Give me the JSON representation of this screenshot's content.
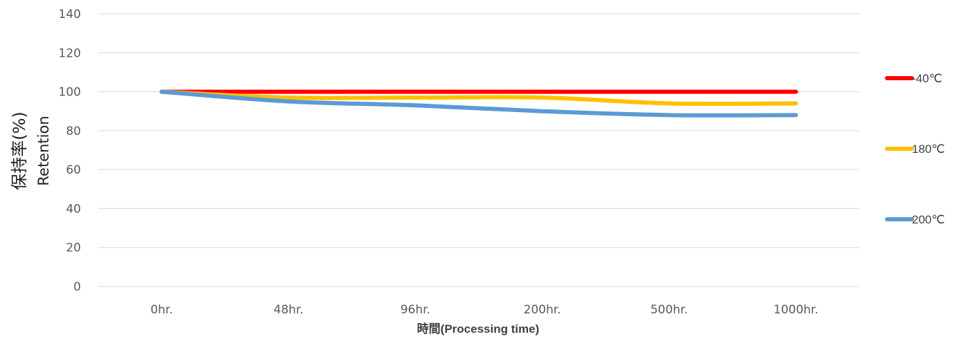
{
  "chart_data": {
    "type": "line",
    "title": "",
    "xlabel": "時間(Processing time)",
    "ylabel_main": "保持率(%)",
    "ylabel_sub": "Retention",
    "categories": [
      "0hr.",
      "48hr.",
      "96hr.",
      "200hr.",
      "500hr.",
      "1000hr."
    ],
    "ylim": [
      0,
      140
    ],
    "yticks": [
      0,
      20,
      40,
      60,
      80,
      100,
      120,
      140
    ],
    "grid": true,
    "legend_position": "right",
    "smooth": true,
    "series": [
      {
        "name": "-40℃",
        "color": "#ff0000",
        "values": [
          100,
          100,
          100,
          100,
          100,
          100
        ]
      },
      {
        "name": "180℃",
        "color": "#ffc000",
        "values": [
          100,
          97,
          97,
          97,
          94,
          94
        ]
      },
      {
        "name": "200℃",
        "color": "#5b9bd5",
        "values": [
          100,
          95,
          93,
          90,
          88,
          88
        ]
      }
    ]
  }
}
